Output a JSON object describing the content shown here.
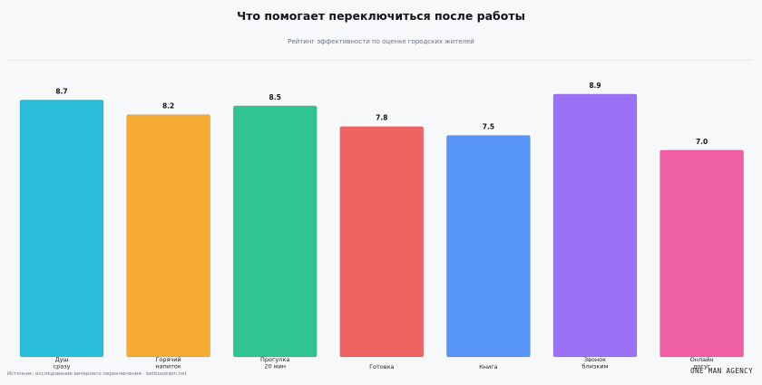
{
  "title": "Что помогает переключиться после работы",
  "subtitle": "Рейтинг эффективности по оценке городских жителей",
  "source": "Источник: исследование вечернего переключения · betboostwin.net",
  "brand": "ONE MAN AGENCY",
  "chart_data": {
    "type": "bar",
    "categories": [
      [
        "Душ",
        "сразу"
      ],
      [
        "Горячий",
        "напиток"
      ],
      [
        "Прогулка",
        "20 мин"
      ],
      [
        "Готовка"
      ],
      [
        "Книга"
      ],
      [
        "Звонок",
        "близким"
      ],
      [
        "Онлайн",
        "досуг"
      ]
    ],
    "values": [
      8.7,
      8.2,
      8.5,
      7.8,
      7.5,
      8.9,
      7.0
    ],
    "value_labels": [
      "8.7",
      "8.2",
      "8.5",
      "7.8",
      "7.5",
      "8.9",
      "7.0"
    ],
    "colors": [
      "#2bbfdb",
      "#f5ab34",
      "#31c491",
      "#f06262",
      "#5795f7",
      "#9b71f5",
      "#ef5fa4"
    ],
    "title": "Что помогает переключиться после работы",
    "xlabel": "",
    "ylabel": "",
    "ylim": [
      0,
      10
    ],
    "grid": false,
    "legend": "none"
  }
}
